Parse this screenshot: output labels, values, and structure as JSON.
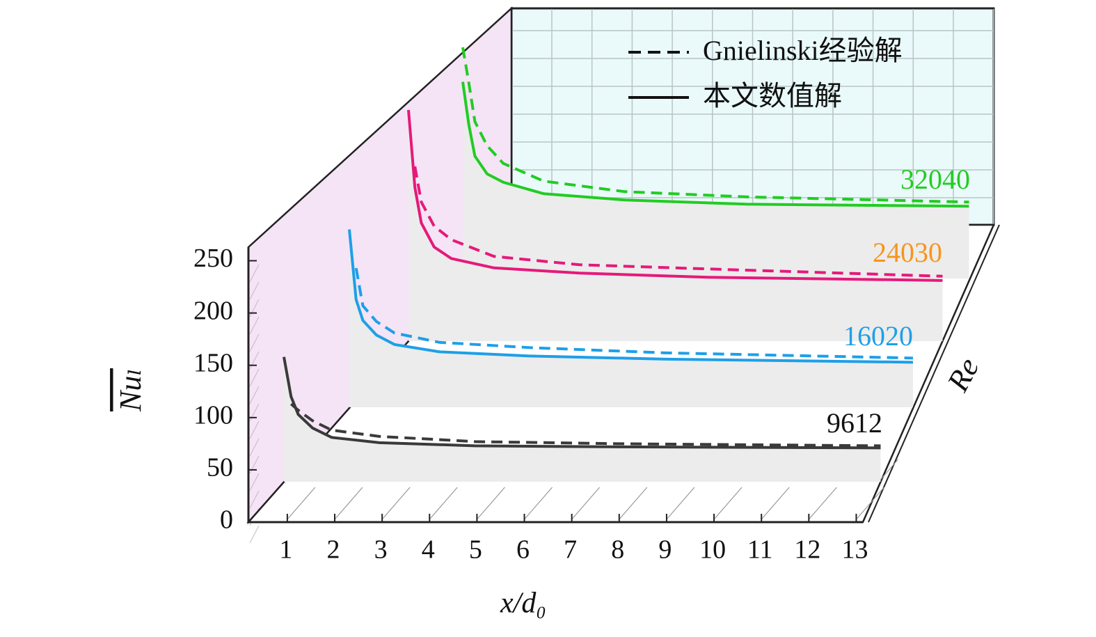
{
  "chart_data": {
    "type": "waterfall-line",
    "xlabel": "x/d₀",
    "ylabel": "Nuₗ",
    "zlabel": "Re",
    "legend": [
      {
        "label": "Gnielinski经验解",
        "dashed": true
      },
      {
        "label": "本文数值解",
        "dashed": false
      }
    ],
    "x": [
      1,
      1.15,
      1.3,
      1.6,
      2,
      3,
      5,
      8,
      13.5
    ],
    "xlim": [
      0.18,
      13.14
    ],
    "xticks": [
      1,
      2,
      3,
      4,
      5,
      6,
      7,
      8,
      9,
      10,
      11,
      12,
      13
    ],
    "ylim": [
      0,
      263
    ],
    "yticks": [
      0,
      50,
      100,
      150,
      200,
      250
    ],
    "series": [
      {
        "name": "9612",
        "color": "#3a3a3a",
        "label_color": "#111111",
        "values": [
          158,
          120,
          103,
          90,
          81,
          76,
          73,
          72,
          71
        ],
        "gnielinski": [
          null,
          113,
          107,
          97,
          88,
          82,
          77,
          75,
          73
        ]
      },
      {
        "name": "16020",
        "color": "#1e9fe8",
        "label_color": "#1e9fe8",
        "values": [
          210,
          143,
          123,
          109,
          100,
          93,
          89,
          86,
          83
        ],
        "gnielinski": [
          null,
          173,
          137,
          122,
          111,
          102,
          97,
          92,
          87
        ]
      },
      {
        "name": "24030",
        "color": "#e6197a",
        "label_color": "#f7941d",
        "values": [
          261,
          187,
          153,
          130,
          119,
          110,
          105,
          101,
          98
        ],
        "gnielinski": [
          null,
          207,
          173,
          150,
          137,
          121,
          113,
          109,
          102
        ]
      },
      {
        "name": "32040",
        "color": "#22cc22",
        "label_color": "#22cc22",
        "values": [
          228,
          187,
          157,
          140,
          132,
          121,
          115,
          111,
          109
        ],
        "gnielinski": [
          261,
          227,
          190,
          167,
          150,
          133,
          123,
          118,
          113
        ]
      }
    ]
  }
}
